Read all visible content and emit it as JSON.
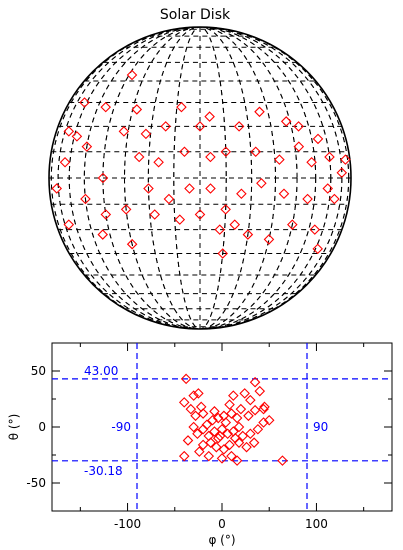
{
  "chart_data": [
    {
      "type": "scatter",
      "title": "Solar Disk",
      "projection": "orthographic disk with latitude/longitude grid",
      "marker": "diamond",
      "colors": {
        "grid": "#000000",
        "markers": "#ff0000"
      },
      "points": [
        {
          "x": -38,
          "y": 43
        },
        {
          "x": -62,
          "y": 30
        },
        {
          "x": -45,
          "y": 28
        },
        {
          "x": -28,
          "y": 27
        },
        {
          "x": -8,
          "y": 28
        },
        {
          "x": -32,
          "y": 18
        },
        {
          "x": -66,
          "y": 18
        },
        {
          "x": -58,
          "y": 16
        },
        {
          "x": -50,
          "y": 12
        },
        {
          "x": -22,
          "y": 17
        },
        {
          "x": -14,
          "y": 20
        },
        {
          "x": 0,
          "y": 20
        },
        {
          "x": 4,
          "y": 24
        },
        {
          "x": 16,
          "y": 20
        },
        {
          "x": 26,
          "y": 26
        },
        {
          "x": 38,
          "y": 22
        },
        {
          "x": 44,
          "y": 20
        },
        {
          "x": 54,
          "y": 15
        },
        {
          "x": -64,
          "y": 6
        },
        {
          "x": -40,
          "y": 0
        },
        {
          "x": -24,
          "y": 8
        },
        {
          "x": -16,
          "y": 6
        },
        {
          "x": -6,
          "y": 10
        },
        {
          "x": 4,
          "y": 8
        },
        {
          "x": 10,
          "y": 10
        },
        {
          "x": 22,
          "y": 10
        },
        {
          "x": 32,
          "y": 7
        },
        {
          "x": 42,
          "y": 12
        },
        {
          "x": 48,
          "y": 6
        },
        {
          "x": 60,
          "y": 8
        },
        {
          "x": 70,
          "y": 2
        },
        {
          "x": 76,
          "y": 7
        },
        {
          "x": -72,
          "y": -4
        },
        {
          "x": -50,
          "y": -8
        },
        {
          "x": -40,
          "y": -14
        },
        {
          "x": -30,
          "y": -12
        },
        {
          "x": -20,
          "y": -4
        },
        {
          "x": -12,
          "y": -8
        },
        {
          "x": -4,
          "y": -4
        },
        {
          "x": 4,
          "y": -4
        },
        {
          "x": 10,
          "y": -12
        },
        {
          "x": 16,
          "y": -6
        },
        {
          "x": 24,
          "y": -2
        },
        {
          "x": 34,
          "y": -6
        },
        {
          "x": 46,
          "y": -8
        },
        {
          "x": 58,
          "y": -4
        },
        {
          "x": 64,
          "y": -8
        },
        {
          "x": -66,
          "y": -18
        },
        {
          "x": -44,
          "y": -22
        },
        {
          "x": -30,
          "y": -26
        },
        {
          "x": -18,
          "y": -14
        },
        {
          "x": -8,
          "y": -16
        },
        {
          "x": 0,
          "y": -14
        },
        {
          "x": 8,
          "y": -20
        },
        {
          "x": 14,
          "y": -18
        },
        {
          "x": 20,
          "y": -22
        },
        {
          "x": 30,
          "y": -24
        },
        {
          "x": 40,
          "y": -18
        },
        {
          "x": 54,
          "y": -20
        },
        {
          "x": 62,
          "y": -28
        },
        {
          "x": 10,
          "y": -30
        }
      ]
    },
    {
      "type": "scatter",
      "xlabel": "φ (°)",
      "ylabel": "θ (°)",
      "xlim": [
        -180,
        180
      ],
      "ylim": [
        -75,
        75
      ],
      "xticks": [
        -100,
        0,
        100
      ],
      "yticks": [
        -50,
        0,
        50
      ],
      "marker": "diamond",
      "colors": {
        "markers": "#ff0000",
        "reference_lines": "#0000ff",
        "axes": "#000000"
      },
      "reference_lines": {
        "horizontal": [
          {
            "value": 43.0,
            "label": "43.00"
          },
          {
            "value": -30.18,
            "label": "-30.18"
          }
        ],
        "vertical": [
          {
            "value": -90,
            "label": "-90"
          },
          {
            "value": 90,
            "label": "90"
          }
        ]
      },
      "points": [
        {
          "x": -38,
          "y": 43
        },
        {
          "x": -40,
          "y": 22
        },
        {
          "x": -33,
          "y": 16
        },
        {
          "x": -30,
          "y": 28
        },
        {
          "x": -25,
          "y": 30
        },
        {
          "x": -22,
          "y": 18
        },
        {
          "x": -20,
          "y": 12
        },
        {
          "x": 35,
          "y": 40
        },
        {
          "x": 40,
          "y": 32
        },
        {
          "x": 30,
          "y": 24
        },
        {
          "x": 24,
          "y": 30
        },
        {
          "x": 12,
          "y": 28
        },
        {
          "x": 8,
          "y": 20
        },
        {
          "x": 20,
          "y": 16
        },
        {
          "x": 45,
          "y": 18
        },
        {
          "x": 35,
          "y": 15
        },
        {
          "x": 50,
          "y": 6
        },
        {
          "x": 44,
          "y": 4
        },
        {
          "x": 28,
          "y": 10
        },
        {
          "x": 16,
          "y": 8
        },
        {
          "x": 10,
          "y": 12
        },
        {
          "x": 2,
          "y": 10
        },
        {
          "x": -4,
          "y": 8
        },
        {
          "x": -10,
          "y": 6
        },
        {
          "x": -16,
          "y": 2
        },
        {
          "x": -30,
          "y": 0
        },
        {
          "x": -26,
          "y": -6
        },
        {
          "x": -20,
          "y": -2
        },
        {
          "x": -14,
          "y": -8
        },
        {
          "x": -8,
          "y": -4
        },
        {
          "x": -4,
          "y": -10
        },
        {
          "x": 0,
          "y": -2
        },
        {
          "x": 6,
          "y": -6
        },
        {
          "x": 12,
          "y": -4
        },
        {
          "x": 18,
          "y": 0
        },
        {
          "x": 22,
          "y": -8
        },
        {
          "x": 30,
          "y": -6
        },
        {
          "x": 38,
          "y": -2
        },
        {
          "x": 34,
          "y": -14
        },
        {
          "x": 26,
          "y": -18
        },
        {
          "x": 18,
          "y": -14
        },
        {
          "x": 8,
          "y": -16
        },
        {
          "x": 2,
          "y": -20
        },
        {
          "x": -6,
          "y": -18
        },
        {
          "x": -12,
          "y": -14
        },
        {
          "x": -20,
          "y": -16
        },
        {
          "x": -36,
          "y": -12
        },
        {
          "x": -40,
          "y": -26
        },
        {
          "x": -24,
          "y": -22
        },
        {
          "x": -14,
          "y": -26
        },
        {
          "x": 0,
          "y": -28
        },
        {
          "x": 10,
          "y": -26
        },
        {
          "x": 16,
          "y": -30
        },
        {
          "x": 64,
          "y": -30
        },
        {
          "x": 44,
          "y": 16
        },
        {
          "x": -8,
          "y": 14
        },
        {
          "x": 4,
          "y": 4
        },
        {
          "x": -2,
          "y": -8
        },
        {
          "x": 14,
          "y": -10
        },
        {
          "x": -28,
          "y": 10
        }
      ]
    }
  ]
}
